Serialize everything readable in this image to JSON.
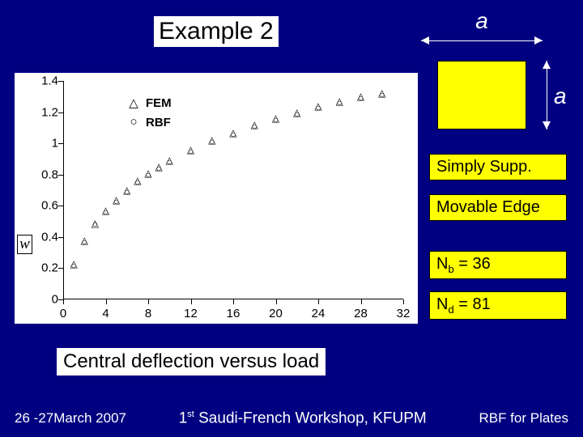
{
  "title": "Example 2",
  "dim_label_a": "a",
  "panels": {
    "simsup": "Simply Supp.",
    "movedge": "Movable Edge",
    "nb_prefix": "N",
    "nb_sub": "b",
    "nb_val": " = 36",
    "nd_prefix": "N",
    "nd_sub": "d",
    "nd_val": " = 81"
  },
  "caption": "Central deflection versus load",
  "footer": {
    "left": "26 -27March 2007",
    "mid_pre": "1",
    "mid_sup": "st",
    "mid_rest": " Saudi-French Workshop, KFUPM",
    "right": "RBF for Plates"
  },
  "yaxis_title": "w",
  "chart": {
    "type": "scatter",
    "background_color": "#ffffff",
    "axis_color": "#000000",
    "xlim": [
      0,
      32
    ],
    "ylim": [
      0,
      1.4
    ],
    "xticks": [
      0,
      4,
      8,
      12,
      16,
      20,
      24,
      28,
      32
    ],
    "yticks": [
      0,
      0.2,
      0.4,
      0.6,
      0.8,
      1,
      1.2,
      1.4
    ],
    "legend": [
      {
        "symbol": "△",
        "label": "FEM"
      },
      {
        "symbol": "○",
        "label": "RBF"
      }
    ],
    "series": [
      {
        "name": "FEM",
        "marker": "△",
        "marker_size": 12,
        "color": "#000000",
        "points": [
          [
            1,
            0.23
          ],
          [
            2,
            0.38
          ],
          [
            3,
            0.49
          ],
          [
            4,
            0.57
          ],
          [
            5,
            0.64
          ],
          [
            6,
            0.7
          ],
          [
            7,
            0.76
          ],
          [
            8,
            0.81
          ],
          [
            9,
            0.85
          ],
          [
            10,
            0.89
          ],
          [
            12,
            0.96
          ],
          [
            14,
            1.02
          ],
          [
            16,
            1.07
          ],
          [
            18,
            1.12
          ],
          [
            20,
            1.16
          ],
          [
            22,
            1.2
          ],
          [
            24,
            1.24
          ],
          [
            26,
            1.27
          ],
          [
            28,
            1.3
          ],
          [
            30,
            1.32
          ]
        ]
      },
      {
        "name": "RBF",
        "marker": "○",
        "marker_size": 12,
        "color": "#000000",
        "points": [
          [
            1,
            0.22
          ],
          [
            2,
            0.37
          ],
          [
            3,
            0.48
          ],
          [
            4,
            0.56
          ],
          [
            5,
            0.63
          ],
          [
            6,
            0.69
          ],
          [
            7,
            0.75
          ],
          [
            8,
            0.8
          ],
          [
            9,
            0.84
          ],
          [
            10,
            0.88
          ],
          [
            12,
            0.95
          ],
          [
            14,
            1.01
          ],
          [
            16,
            1.06
          ],
          [
            18,
            1.11
          ],
          [
            20,
            1.15
          ],
          [
            22,
            1.19
          ],
          [
            24,
            1.23
          ],
          [
            26,
            1.26
          ],
          [
            28,
            1.29
          ],
          [
            30,
            1.31
          ]
        ]
      }
    ]
  }
}
